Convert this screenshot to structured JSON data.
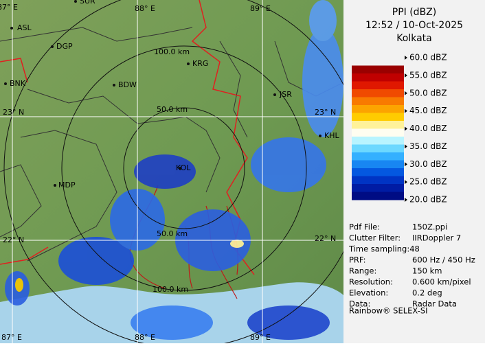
{
  "header": {
    "title": "PPI (dBZ)",
    "time": "12:52 / 10-Oct-2025",
    "site": "Kolkata"
  },
  "scale": {
    "labels": [
      "60.0 dBZ",
      "55.0 dBZ",
      "50.0 dBZ",
      "45.0 dBZ",
      "40.0 dBZ",
      "35.0 dBZ",
      "30.0 dBZ",
      "25.0 dBZ",
      "20.0 dBZ"
    ],
    "colors": [
      "#f2f2f2",
      "#9a0000",
      "#c00000",
      "#e01800",
      "#f04a00",
      "#f87a00",
      "#fca400",
      "#ffcc00",
      "#fff29a",
      "#fffdf0",
      "#b8f4ff",
      "#6cd8ff",
      "#34b0ff",
      "#1886f2",
      "#0458e0",
      "#0034c4",
      "#001ca4",
      "#000c84"
    ]
  },
  "info": {
    "rows": [
      [
        "Pdf File:",
        "150Z.ppi"
      ],
      [
        "Clutter Filter:",
        "IIRDoppler 7"
      ],
      [
        "Time sampling:48"
      ],
      [
        "PRF:",
        "600 Hz / 450 Hz"
      ],
      [
        "Range:",
        "150 km"
      ],
      [
        "Resolution:",
        "0.600 km/pixel"
      ],
      [
        "Elevation:",
        "0.2 deg"
      ],
      [
        "Data:",
        "Radar Data"
      ]
    ]
  },
  "footer": "Rainbow® SELEX-SI",
  "map": {
    "grid_labels": [
      "87° E",
      "88° E",
      "89° E",
      "23° N",
      "22° N",
      "87° E",
      "88° E",
      "89° E",
      "23° N",
      "22° N"
    ],
    "range_labels": [
      "100.0 km",
      "50.0 km",
      "50.0 km",
      "100.0 km"
    ],
    "cities": [
      "SUR",
      "ASL",
      "DGP",
      "KRG",
      "BNK",
      "BDW",
      "JSR",
      "KOL",
      "MDP",
      "KHL"
    ]
  }
}
